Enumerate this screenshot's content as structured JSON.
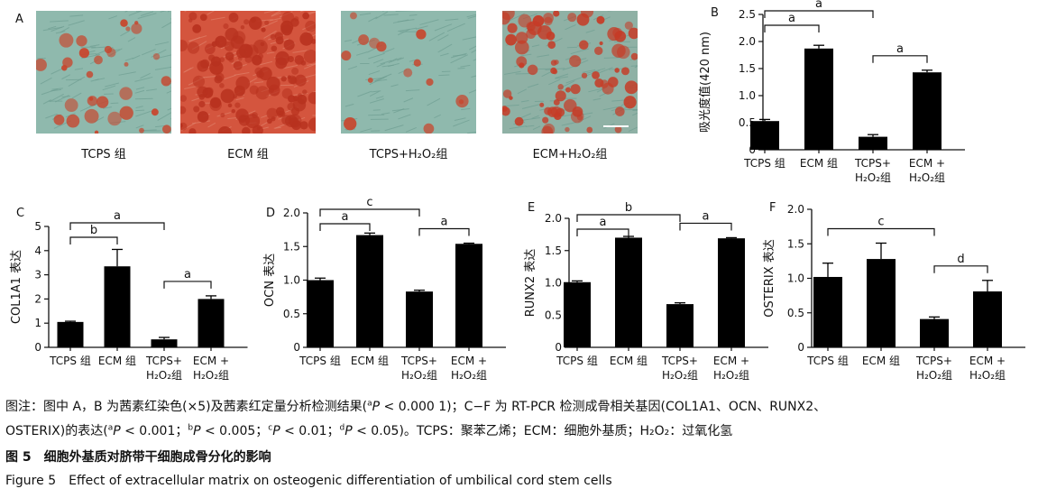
{
  "panel_a": {
    "letter": "A",
    "images": [
      {
        "caption": "TCPS 组",
        "tint": "#8fb9ad",
        "stain": "#c8452c",
        "density": 0.22
      },
      {
        "caption": "ECM 组",
        "tint": "#d4553e",
        "stain": "#b8321f",
        "density": 0.95
      },
      {
        "caption": "TCPS+H₂O₂组",
        "tint": "#8fb9ad",
        "stain": "#c8452c",
        "density": 0.1
      },
      {
        "caption": "ECM+H₂O₂组",
        "tint": "#8fb1a5",
        "stain": "#c63b26",
        "density": 0.55
      }
    ]
  },
  "chart_data": [
    {
      "panel": "B",
      "type": "bar",
      "categories": [
        [
          "TCPS 组"
        ],
        [
          "ECM 组"
        ],
        [
          "TCPS+",
          "H₂O₂组"
        ],
        [
          "ECM +",
          "H₂O₂组"
        ]
      ],
      "values": [
        0.53,
        1.87,
        0.24,
        1.43
      ],
      "errors": [
        0.03,
        0.06,
        0.04,
        0.04
      ],
      "ylabel": "吸光度值(420 nm)",
      "ylim": [
        0,
        2.5
      ],
      "yticks": [
        "0",
        "0.5",
        "1.0",
        "1.5",
        "2.0",
        "2.5"
      ],
      "annotations": [
        {
          "from": 0,
          "to": 2,
          "label": "a",
          "level": 2
        },
        {
          "from": 0,
          "to": 1,
          "label": "a",
          "level": 1
        },
        {
          "from": 2,
          "to": 3,
          "label": "a",
          "level": 1
        }
      ]
    },
    {
      "panel": "C",
      "type": "bar",
      "categories": [
        [
          "TCPS 组"
        ],
        [
          "ECM 组"
        ],
        [
          "TCPS+",
          "H₂O₂组"
        ],
        [
          "ECM +",
          "H₂O₂组"
        ]
      ],
      "values": [
        1.05,
        3.35,
        0.33,
        2.0
      ],
      "errors": [
        0.03,
        0.7,
        0.08,
        0.13
      ],
      "ylabel": "COL1A1 表达",
      "ylim": [
        0,
        5
      ],
      "yticks": [
        "0",
        "1",
        "2",
        "3",
        "4",
        "5"
      ],
      "annotations": [
        {
          "from": 0,
          "to": 2,
          "label": "a",
          "level": 2
        },
        {
          "from": 0,
          "to": 1,
          "label": "b",
          "level": 1
        },
        {
          "from": 2,
          "to": 3,
          "label": "a",
          "level": 1
        }
      ]
    },
    {
      "panel": "D",
      "type": "bar",
      "categories": [
        [
          "TCPS 组"
        ],
        [
          "ECM 组"
        ],
        [
          "TCPS+",
          "H₂O₂组"
        ],
        [
          "ECM +",
          "H₂O₂组"
        ]
      ],
      "values": [
        1.0,
        1.67,
        0.83,
        1.54
      ],
      "errors": [
        0.03,
        0.03,
        0.02,
        0.01
      ],
      "ylabel": "OCN 表达",
      "ylim": [
        0,
        2.0
      ],
      "yticks": [
        "0",
        "0.5",
        "1.0",
        "1.5",
        "2.0"
      ],
      "annotations": [
        {
          "from": 0,
          "to": 2,
          "label": "c",
          "level": 2
        },
        {
          "from": 0,
          "to": 1,
          "label": "a",
          "level": 1
        },
        {
          "from": 2,
          "to": 3,
          "label": "a",
          "level": 1
        }
      ]
    },
    {
      "panel": "E",
      "type": "bar",
      "categories": [
        [
          "TCPS 组"
        ],
        [
          "ECM 组"
        ],
        [
          "TCPS+",
          "H₂O₂组"
        ],
        [
          "ECM +",
          "H₂O₂组"
        ]
      ],
      "values": [
        1.01,
        1.7,
        0.67,
        1.69
      ],
      "errors": [
        0.02,
        0.02,
        0.02,
        0.01
      ],
      "ylabel": "RUNX2 表达",
      "ylim": [
        0,
        2.0
      ],
      "yticks": [
        "0",
        "0.5",
        "1.0",
        "1.5",
        "2.0"
      ],
      "annotations": [
        {
          "from": 0,
          "to": 2,
          "label": "b",
          "level": 2
        },
        {
          "from": 0,
          "to": 1,
          "label": "a",
          "level": 1
        },
        {
          "from": 2,
          "to": 3,
          "label": "a",
          "level": 1
        }
      ]
    },
    {
      "panel": "F",
      "type": "bar",
      "categories": [
        [
          "TCPS 组"
        ],
        [
          "ECM 组"
        ],
        [
          "TCPS+",
          "H₂O₂组"
        ],
        [
          "ECM +",
          "H₂O₂组"
        ]
      ],
      "values": [
        1.02,
        1.28,
        0.41,
        0.81
      ],
      "errors": [
        0.2,
        0.23,
        0.03,
        0.16
      ],
      "ylabel": "OSTERIX 表达",
      "ylim": [
        0,
        2.0
      ],
      "yticks": [
        "0",
        "0.5",
        "1.0",
        "1.5",
        "2.0"
      ],
      "annotations": [
        {
          "from": 0,
          "to": 2,
          "label": "c",
          "level": 1
        },
        {
          "from": 2,
          "to": 3,
          "label": "d",
          "level": 1
        }
      ]
    }
  ],
  "caption": {
    "note_prefix": "图注：图中 A，B 为茜素红染色(×5)及茜素红定量分析检测结果(",
    "note_sup_a1": "a",
    "note_p1": "P",
    "note_mid1": " < 0.000 1)；C−F 为 RT-PCR 检测成骨相关基因(COL1A1、OCN、RUNX2、",
    "note_line2_start": "OSTERIX)的表达(",
    "sup_a": "a",
    "p_a": "P",
    "val_a": " < 0.001；",
    "sup_b": "b",
    "p_b": "P",
    "val_b": " < 0.005；",
    "sup_c": "c",
    "p_c": "P",
    "val_c": " < 0.01；",
    "sup_d": "d",
    "p_d": "P",
    "val_d": " < 0.05)。TCPS：聚苯乙烯；ECM：细胞外基质；H₂O₂：过氧化氢",
    "title_cn": "图 5　细胞外基质对脐带干细胞成骨分化的影响",
    "title_en": "Figure 5　Effect of extracellular matrix on osteogenic differentiation of umbilical cord stem cells"
  }
}
